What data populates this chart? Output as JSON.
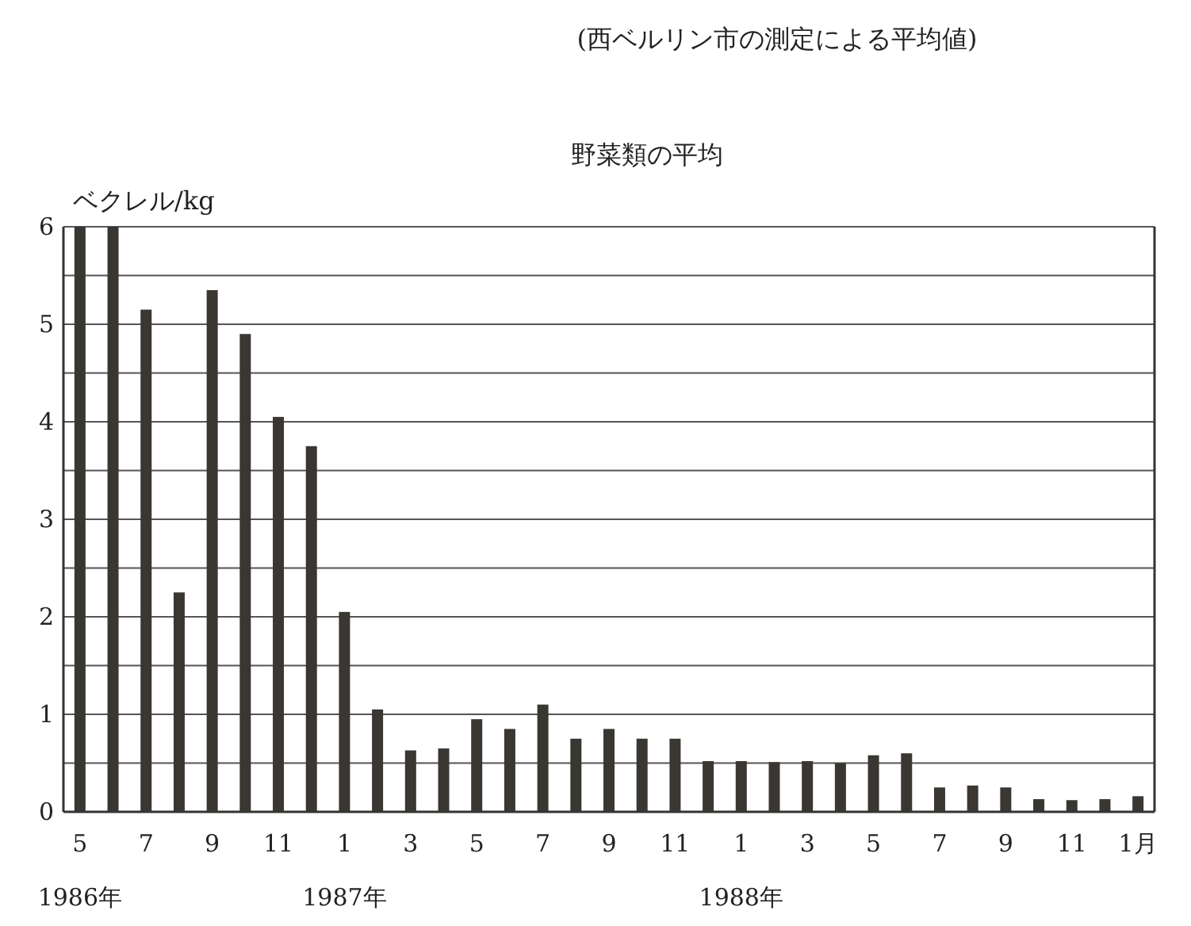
{
  "chart_data": {
    "type": "bar",
    "subtitle": "(西ベルリン市の測定による平均値)",
    "title": "野菜類の平均",
    "ylabel": "ベクレル/kg",
    "categories": [
      "5\n1986年",
      null,
      "7",
      null,
      "9",
      null,
      "11",
      null,
      "1\n1987年",
      null,
      "3",
      null,
      "5",
      null,
      "7",
      null,
      "9",
      null,
      "11",
      null,
      "1\n1988年",
      null,
      "3",
      null,
      "5",
      null,
      "7",
      null,
      "9",
      null,
      "11",
      null,
      "1月"
    ],
    "values": [
      6,
      6,
      5.15,
      2.25,
      5.35,
      4.9,
      4.05,
      3.75,
      2.05,
      1.05,
      0.63,
      0.65,
      0.95,
      0.85,
      1.1,
      0.75,
      0.85,
      0.75,
      0.75,
      0.52,
      0.52,
      0.51,
      0.52,
      0.5,
      0.58,
      0.6,
      0.25,
      0.27,
      0.25,
      0.13,
      0.12,
      0.13,
      0.16
    ],
    "color": "#3a3632",
    "ylim": [
      0,
      6
    ],
    "yticks": [
      0,
      {
        "value": 0.5,
        "label": null
      },
      1,
      {
        "value": 1.5,
        "label": null
      },
      2,
      {
        "value": 2.5,
        "label": null
      },
      3,
      {
        "value": 3.5,
        "label": null
      },
      4,
      {
        "value": 4.5,
        "label": null
      },
      5,
      {
        "value": 5.5,
        "label": null
      },
      6
    ],
    "grid": "y"
  }
}
